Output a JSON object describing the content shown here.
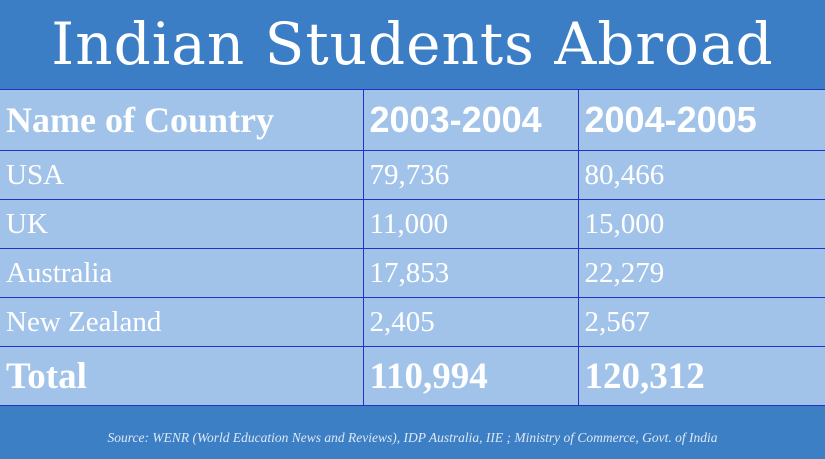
{
  "header": {
    "title": "Indian Students Abroad"
  },
  "table": {
    "columns": [
      "Name of Country",
      "2003-2004",
      "2004-2005"
    ],
    "rows": [
      [
        "USA",
        "79,736",
        "80,466"
      ],
      [
        "UK",
        "11,000",
        "15,000"
      ],
      [
        "Australia",
        "17,853",
        "22,279"
      ],
      [
        "New Zealand",
        "2,405",
        "2,567"
      ]
    ],
    "total": [
      "Total",
      "110,994",
      "120,312"
    ]
  },
  "source": "Source: WENR (World Education News and Reviews), IDP Australia, IIE ; Ministry of Commerce, Govt. of India"
}
